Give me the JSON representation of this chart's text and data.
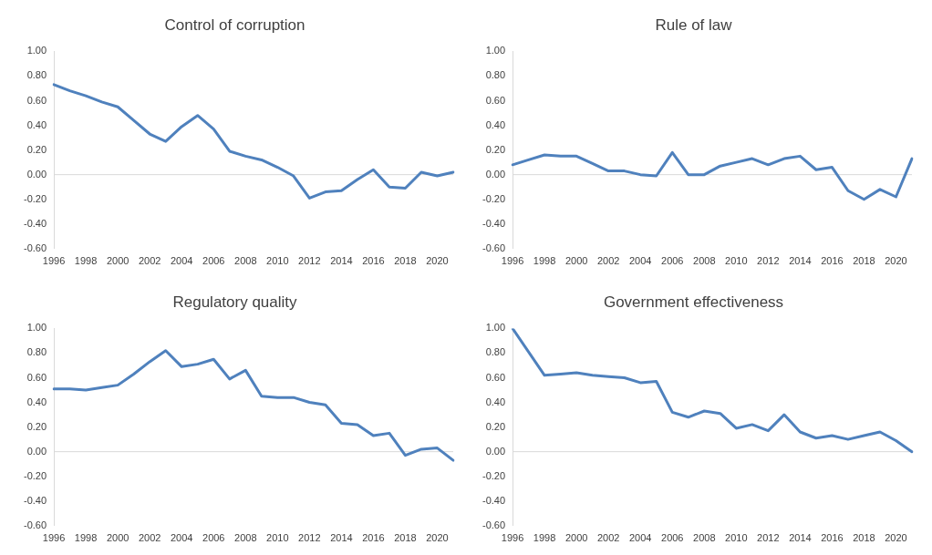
{
  "chart_data": [
    {
      "type": "line",
      "title": "Control of corruption",
      "categories": [
        "1996",
        null,
        "1998",
        null,
        "2000",
        null,
        "2002",
        null,
        "2004",
        null,
        "2006",
        null,
        "2008",
        null,
        "2010",
        null,
        "2012",
        null,
        "2014",
        null,
        "2016",
        null,
        "2018",
        null,
        "2020",
        null
      ],
      "series": [
        {
          "color": "#4f81bd",
          "values": [
            0.73,
            0.68,
            0.64,
            0.59,
            0.55,
            0.44,
            0.33,
            0.27,
            0.39,
            0.48,
            0.37,
            0.19,
            0.15,
            0.12,
            0.06,
            -0.01,
            -0.19,
            -0.14,
            -0.13,
            -0.04,
            0.04,
            -0.1,
            -0.11,
            0.02,
            -0.01,
            0.02
          ]
        }
      ],
      "ref_lines": [
        {
          "axis": "y",
          "value": 0,
          "color": "#d9d9d9"
        }
      ],
      "ylim": [
        -0.6,
        1.0
      ],
      "yticks": [
        {
          "value": -0.6,
          "label": "-0.60"
        },
        {
          "value": -0.4,
          "label": "-0.40"
        },
        {
          "value": -0.2,
          "label": "-0.20"
        },
        {
          "value": 0,
          "label": "0.00"
        },
        {
          "value": 0.2,
          "label": "0.20"
        },
        {
          "value": 0.4,
          "label": "0.40"
        },
        {
          "value": 0.6,
          "label": "0.60"
        },
        {
          "value": 0.8,
          "label": "0.80"
        },
        {
          "value": 1.0,
          "label": "1.00"
        }
      ],
      "grid": false,
      "legend": false,
      "marker": "none",
      "line_style": "solid"
    },
    {
      "type": "line",
      "title": "Rule of law",
      "categories": [
        "1996",
        null,
        "1998",
        null,
        "2000",
        null,
        "2002",
        null,
        "2004",
        null,
        "2006",
        null,
        "2008",
        null,
        "2010",
        null,
        "2012",
        null,
        "2014",
        null,
        "2016",
        null,
        "2018",
        null,
        "2020",
        null
      ],
      "series": [
        {
          "color": "#4f81bd",
          "values": [
            0.08,
            0.12,
            0.16,
            0.15,
            0.15,
            0.09,
            0.03,
            0.03,
            0.0,
            -0.01,
            0.18,
            0.0,
            0.0,
            0.07,
            0.1,
            0.13,
            0.08,
            0.13,
            0.15,
            0.04,
            0.06,
            -0.13,
            -0.2,
            -0.12,
            -0.18,
            0.13
          ]
        }
      ],
      "ref_lines": [
        {
          "axis": "y",
          "value": 0,
          "color": "#d9d9d9"
        }
      ],
      "ylim": [
        -0.6,
        1.0
      ],
      "yticks": [
        {
          "value": -0.6,
          "label": "-0.60"
        },
        {
          "value": -0.4,
          "label": "-0.40"
        },
        {
          "value": -0.2,
          "label": "-0.20"
        },
        {
          "value": 0,
          "label": "0.00"
        },
        {
          "value": 0.2,
          "label": "0.20"
        },
        {
          "value": 0.4,
          "label": "0.40"
        },
        {
          "value": 0.6,
          "label": "0.60"
        },
        {
          "value": 0.8,
          "label": "0.80"
        },
        {
          "value": 1.0,
          "label": "1.00"
        }
      ],
      "grid": false,
      "legend": false,
      "marker": "none",
      "line_style": "solid"
    },
    {
      "type": "line",
      "title": "Regulatory quality",
      "categories": [
        "1996",
        null,
        "1998",
        null,
        "2000",
        null,
        "2002",
        null,
        "2004",
        null,
        "2006",
        null,
        "2008",
        null,
        "2010",
        null,
        "2012",
        null,
        "2014",
        null,
        "2016",
        null,
        "2018",
        null,
        "2020",
        null
      ],
      "series": [
        {
          "color": "#4f81bd",
          "values": [
            0.51,
            0.51,
            0.5,
            0.52,
            0.54,
            0.63,
            0.73,
            0.82,
            0.69,
            0.71,
            0.75,
            0.59,
            0.66,
            0.45,
            0.44,
            0.44,
            0.4,
            0.38,
            0.23,
            0.22,
            0.13,
            0.15,
            -0.03,
            0.02,
            0.03,
            -0.07
          ]
        }
      ],
      "ref_lines": [
        {
          "axis": "y",
          "value": 0,
          "color": "#d9d9d9"
        }
      ],
      "ylim": [
        -0.6,
        1.0
      ],
      "yticks": [
        {
          "value": -0.6,
          "label": "-0.60"
        },
        {
          "value": -0.4,
          "label": "-0.40"
        },
        {
          "value": -0.2,
          "label": "-0.20"
        },
        {
          "value": 0,
          "label": "0.00"
        },
        {
          "value": 0.2,
          "label": "0.20"
        },
        {
          "value": 0.4,
          "label": "0.40"
        },
        {
          "value": 0.6,
          "label": "0.60"
        },
        {
          "value": 0.8,
          "label": "0.80"
        },
        {
          "value": 1.0,
          "label": "1.00"
        }
      ],
      "grid": false,
      "legend": false,
      "marker": "none",
      "line_style": "solid"
    },
    {
      "type": "line",
      "title": "Government effectiveness",
      "categories": [
        "1996",
        null,
        "1998",
        null,
        "2000",
        null,
        "2002",
        null,
        "2004",
        null,
        "2006",
        null,
        "2008",
        null,
        "2010",
        null,
        "2012",
        null,
        "2014",
        null,
        "2016",
        null,
        "2018",
        null,
        "2020",
        null
      ],
      "series": [
        {
          "color": "#4f81bd",
          "values": [
            1.0,
            0.81,
            0.62,
            0.63,
            0.64,
            0.62,
            0.61,
            0.6,
            0.56,
            0.57,
            0.32,
            0.28,
            0.33,
            0.31,
            0.19,
            0.22,
            0.17,
            0.3,
            0.16,
            0.11,
            0.13,
            0.1,
            0.13,
            0.16,
            0.09,
            0.0
          ]
        }
      ],
      "ref_lines": [
        {
          "axis": "y",
          "value": 0,
          "color": "#d9d9d9"
        }
      ],
      "ylim": [
        -0.6,
        1.0
      ],
      "yticks": [
        {
          "value": -0.6,
          "label": "-0.60"
        },
        {
          "value": -0.4,
          "label": "-0.40"
        },
        {
          "value": -0.2,
          "label": "-0.20"
        },
        {
          "value": 0,
          "label": "0.00"
        },
        {
          "value": 0.2,
          "label": "0.20"
        },
        {
          "value": 0.4,
          "label": "0.40"
        },
        {
          "value": 0.6,
          "label": "0.60"
        },
        {
          "value": 0.8,
          "label": "0.80"
        },
        {
          "value": 1.0,
          "label": "1.00"
        }
      ],
      "grid": false,
      "legend": false,
      "marker": "none",
      "line_style": "solid"
    }
  ]
}
